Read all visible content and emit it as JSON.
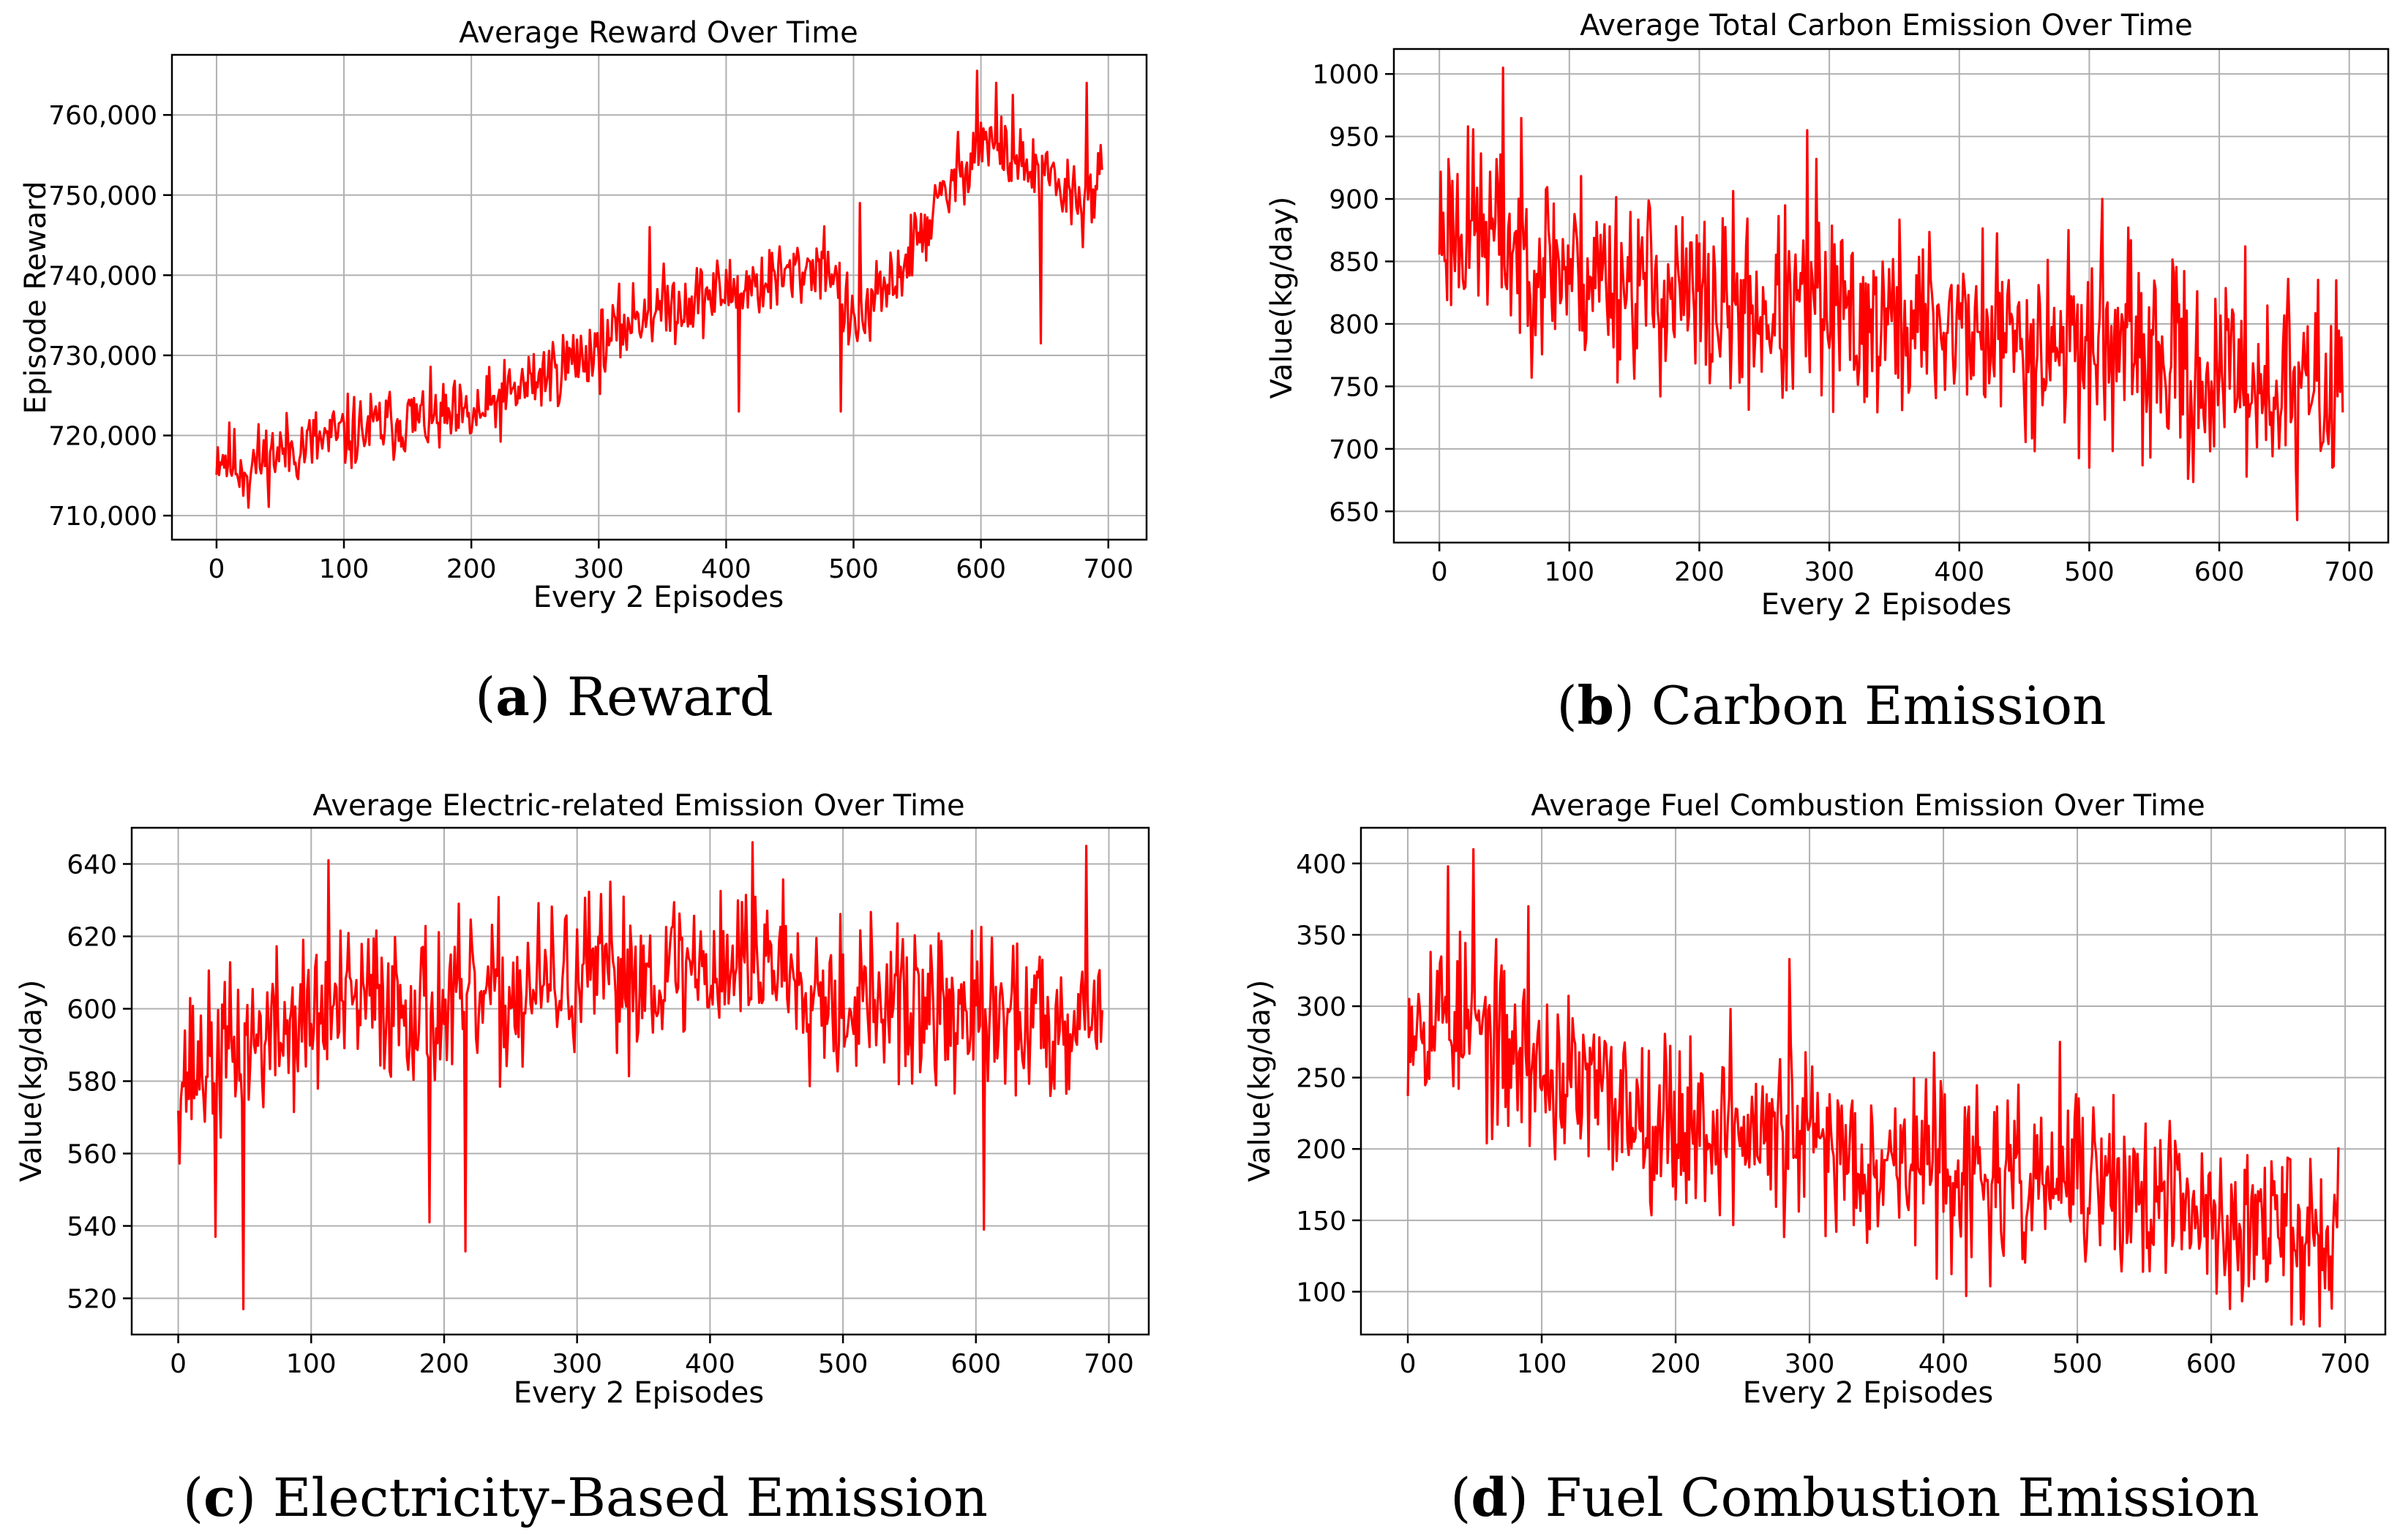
{
  "colors": {
    "series": "#ff0000"
  },
  "chart_data": [
    {
      "id": "a",
      "type": "line",
      "title": "Average Reward Over Time",
      "xlabel": "Every 2 Episodes",
      "ylabel": "Episode Reward",
      "xlim": [
        -35,
        730
      ],
      "ylim": [
        707000,
        767500
      ],
      "xticks": [
        0,
        100,
        200,
        300,
        400,
        500,
        600,
        700
      ],
      "yticks": [
        710000,
        720000,
        730000,
        740000,
        750000,
        760000
      ],
      "ytick_labels": [
        "710,000",
        "720,000",
        "730,000",
        "740,000",
        "750,000",
        "760,000"
      ],
      "grid": true,
      "caption": {
        "letter": "a",
        "text": "Reward"
      },
      "series": [
        {
          "color": "#ff0000",
          "x": [
            0,
            20,
            50,
            100,
            150,
            200,
            250,
            300,
            330,
            350,
            400,
            450,
            480,
            500,
            530,
            560,
            600,
            640,
            680,
            695
          ],
          "y": [
            718000,
            716000,
            718000,
            720000,
            722000,
            722000,
            727000,
            731000,
            735000,
            736000,
            738000,
            740000,
            742000,
            733000,
            739000,
            747000,
            757000,
            753000,
            749000,
            752000
          ],
          "noise": 2300,
          "seed": 11,
          "spikes": [
            [
              597,
              765500
            ],
            [
              612,
              764000
            ],
            [
              625,
              762500
            ],
            [
              647,
              731500
            ],
            [
              683,
              764000
            ],
            [
              490,
              723000
            ],
            [
              410,
              723000
            ],
            [
              25,
              711000
            ],
            [
              340,
              746000
            ],
            [
              505,
              749000
            ]
          ]
        }
      ]
    },
    {
      "id": "b",
      "type": "line",
      "title": "Average Total Carbon Emission Over Time",
      "xlabel": "Every 2 Episodes",
      "ylabel": "Value(kg/day)",
      "xlim": [
        -35,
        730
      ],
      "ylim": [
        625,
        1020
      ],
      "xticks": [
        0,
        100,
        200,
        300,
        400,
        500,
        600,
        700
      ],
      "yticks": [
        650,
        700,
        750,
        800,
        850,
        900,
        950,
        1000
      ],
      "ytick_labels": [
        "650",
        "700",
        "750",
        "800",
        "850",
        "900",
        "950",
        "1000"
      ],
      "grid": true,
      "caption": {
        "letter": "b",
        "text": "Carbon Emission"
      },
      "series": [
        {
          "color": "#ff0000",
          "x": [
            0,
            30,
            60,
            100,
            150,
            200,
            250,
            300,
            350,
            400,
            450,
            500,
            550,
            600,
            650,
            695
          ],
          "y": [
            880,
            875,
            860,
            845,
            835,
            815,
            810,
            805,
            800,
            800,
            785,
            790,
            770,
            755,
            750,
            750
          ],
          "noise": 38,
          "seed": 23,
          "spikes": [
            [
              49,
              1005
            ],
            [
              22,
              958
            ],
            [
              283,
              955
            ],
            [
              290,
              932
            ],
            [
              510,
              900
            ],
            [
              620,
              862
            ],
            [
              660,
              643
            ],
            [
              576,
              676
            ],
            [
              500,
              685
            ]
          ]
        }
      ]
    },
    {
      "id": "c",
      "type": "line",
      "title": "Average Electric-related Emission Over Time",
      "xlabel": "Every 2 Episodes",
      "ylabel": "Value(kg/day)",
      "xlim": [
        -35,
        730
      ],
      "ylim": [
        510,
        650
      ],
      "xticks": [
        0,
        100,
        200,
        300,
        400,
        500,
        600,
        700
      ],
      "yticks": [
        520,
        540,
        560,
        580,
        600,
        620,
        640
      ],
      "ytick_labels": [
        "520",
        "540",
        "560",
        "580",
        "600",
        "620",
        "640"
      ],
      "grid": true,
      "caption": {
        "letter": "c",
        "text": "Electricity-Based Emission"
      },
      "series": [
        {
          "color": "#ff0000",
          "x": [
            0,
            50,
            100,
            150,
            200,
            250,
            300,
            350,
            400,
            450,
            500,
            550,
            600,
            650,
            695
          ],
          "y": [
            582,
            590,
            597,
            603,
            600,
            603,
            608,
            610,
            612,
            614,
            603,
            600,
            598,
            597,
            600
          ],
          "noise": 11,
          "seed": 37,
          "spikes": [
            [
              49,
              517
            ],
            [
              189,
              541
            ],
            [
              216,
              533
            ],
            [
              606,
              539
            ],
            [
              113,
              641
            ],
            [
              432,
              646
            ],
            [
              683,
              645
            ],
            [
              28,
              537
            ]
          ]
        }
      ]
    },
    {
      "id": "d",
      "type": "line",
      "title": "Average Fuel Combustion Emission Over Time",
      "xlabel": "Every 2 Episodes",
      "ylabel": "Value(kg/day)",
      "xlim": [
        -35,
        730
      ],
      "ylim": [
        70,
        425
      ],
      "xticks": [
        0,
        100,
        200,
        300,
        400,
        500,
        600,
        700
      ],
      "yticks": [
        100,
        150,
        200,
        250,
        300,
        350,
        400
      ],
      "ytick_labels": [
        "100",
        "150",
        "200",
        "250",
        "300",
        "350",
        "400"
      ],
      "grid": true,
      "caption": {
        "letter": "d",
        "text": "Fuel Combustion Emission"
      },
      "series": [
        {
          "color": "#ff0000",
          "x": [
            0,
            30,
            60,
            100,
            150,
            200,
            250,
            300,
            350,
            400,
            450,
            500,
            550,
            600,
            650,
            695
          ],
          "y": [
            300,
            295,
            275,
            255,
            235,
            220,
            210,
            205,
            195,
            190,
            170,
            180,
            165,
            150,
            145,
            145
          ],
          "noise": 30,
          "seed": 53,
          "spikes": [
            [
              49,
              410
            ],
            [
              30,
              398
            ],
            [
              90,
              370
            ],
            [
              241,
              298
            ],
            [
              285,
              333
            ],
            [
              417,
              97
            ],
            [
              660,
              77
            ],
            [
              487,
              275
            ]
          ]
        }
      ]
    }
  ]
}
